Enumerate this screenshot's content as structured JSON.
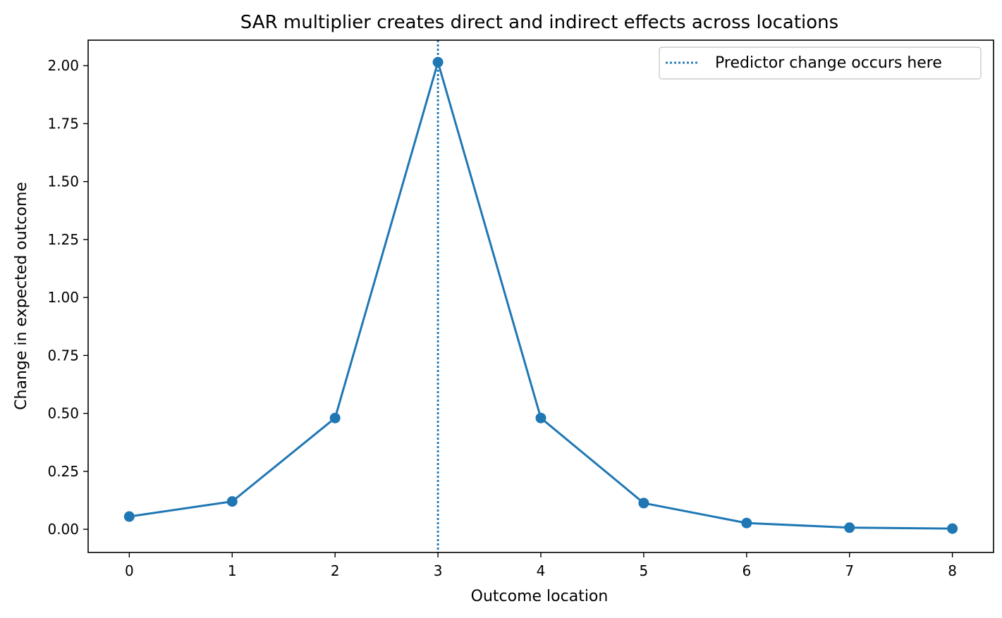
{
  "chart_data": {
    "type": "line",
    "title": "SAR multiplier creates direct and indirect effects across locations",
    "xlabel": "Outcome location",
    "ylabel": "Change in expected outcome",
    "x": [
      0,
      1,
      2,
      3,
      4,
      5,
      6,
      7,
      8
    ],
    "series": [
      {
        "values": [
          0.055,
          0.12,
          0.48,
          2.015,
          0.48,
          0.113,
          0.027,
          0.007,
          0.003
        ],
        "color": "#1f77b4",
        "marker": "circle"
      }
    ],
    "xlim": [
      -0.4,
      8.4
    ],
    "ylim": [
      -0.1,
      2.11
    ],
    "x_ticks": [
      0,
      1,
      2,
      3,
      4,
      5,
      6,
      7,
      8
    ],
    "x_tick_labels": [
      "0",
      "1",
      "2",
      "3",
      "4",
      "5",
      "6",
      "7",
      "8"
    ],
    "y_ticks": [
      0,
      0.25,
      0.5,
      0.75,
      1.0,
      1.25,
      1.5,
      1.75,
      2.0
    ],
    "y_tick_labels": [
      "0.00",
      "0.25",
      "0.50",
      "0.75",
      "1.00",
      "1.25",
      "1.50",
      "1.75",
      "2.00"
    ],
    "vline": {
      "x": 3,
      "style": "dotted",
      "color": "#1f77b4",
      "label": "Predictor change occurs here"
    },
    "legend_position": "top-right",
    "grid": false
  }
}
